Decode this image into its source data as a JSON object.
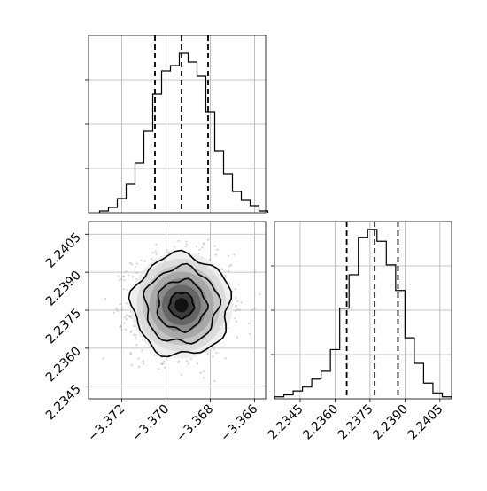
{
  "chart_data": {
    "type": "corner",
    "title": "",
    "parameters": [
      "",
      ""
    ],
    "panels": [
      {
        "name": "param0-histogram",
        "type": "histogram",
        "xlim": [
          -3.3735,
          -3.3655
        ],
        "ylim": [
          0,
          100
        ],
        "grid": true,
        "bins": [
          {
            "x0": -3.373,
            "x1": -3.3726,
            "count": 1
          },
          {
            "x0": -3.3726,
            "x1": -3.3722,
            "count": 3
          },
          {
            "x0": -3.3722,
            "x1": -3.3718,
            "count": 8
          },
          {
            "x0": -3.3718,
            "x1": -3.3714,
            "count": 16
          },
          {
            "x0": -3.3714,
            "x1": -3.371,
            "count": 28
          },
          {
            "x0": -3.371,
            "x1": -3.3706,
            "count": 46
          },
          {
            "x0": -3.3706,
            "x1": -3.3702,
            "count": 67
          },
          {
            "x0": -3.3702,
            "x1": -3.3698,
            "count": 80
          },
          {
            "x0": -3.3698,
            "x1": -3.3694,
            "count": 83
          },
          {
            "x0": -3.3694,
            "x1": -3.369,
            "count": 90
          },
          {
            "x0": -3.369,
            "x1": -3.3686,
            "count": 85
          },
          {
            "x0": -3.3686,
            "x1": -3.3682,
            "count": 77
          },
          {
            "x0": -3.3682,
            "x1": -3.3678,
            "count": 57
          },
          {
            "x0": -3.3678,
            "x1": -3.3674,
            "count": 35
          },
          {
            "x0": -3.3674,
            "x1": -3.367,
            "count": 22
          },
          {
            "x0": -3.367,
            "x1": -3.3666,
            "count": 12
          },
          {
            "x0": -3.3666,
            "x1": -3.3662,
            "count": 7
          },
          {
            "x0": -3.3662,
            "x1": -3.3658,
            "count": 4
          },
          {
            "x0": -3.3658,
            "x1": -3.3654,
            "count": 1
          }
        ],
        "quantiles": [
          -3.3705,
          -3.3693,
          -3.3681
        ]
      },
      {
        "name": "param1-histogram",
        "type": "histogram",
        "xlim": [
          2.2334,
          2.241
        ],
        "ylim": [
          0,
          90
        ],
        "grid": true,
        "x_ticks": [
          "2.2345",
          "2.2360",
          "2.2375",
          "2.2390",
          "2.2405"
        ],
        "bins": [
          {
            "x0": 2.2334,
            "x1": 2.2338,
            "count": 1
          },
          {
            "x0": 2.2338,
            "x1": 2.2342,
            "count": 2
          },
          {
            "x0": 2.2342,
            "x1": 2.2346,
            "count": 4
          },
          {
            "x0": 2.2346,
            "x1": 2.235,
            "count": 6
          },
          {
            "x0": 2.235,
            "x1": 2.2354,
            "count": 10
          },
          {
            "x0": 2.2354,
            "x1": 2.2358,
            "count": 14
          },
          {
            "x0": 2.2358,
            "x1": 2.2362,
            "count": 25
          },
          {
            "x0": 2.2362,
            "x1": 2.2366,
            "count": 46
          },
          {
            "x0": 2.2366,
            "x1": 2.237,
            "count": 63
          },
          {
            "x0": 2.237,
            "x1": 2.2374,
            "count": 82
          },
          {
            "x0": 2.2374,
            "x1": 2.2378,
            "count": 86
          },
          {
            "x0": 2.2378,
            "x1": 2.2382,
            "count": 80
          },
          {
            "x0": 2.2382,
            "x1": 2.2386,
            "count": 68
          },
          {
            "x0": 2.2386,
            "x1": 2.239,
            "count": 55
          },
          {
            "x0": 2.239,
            "x1": 2.2394,
            "count": 31
          },
          {
            "x0": 2.2394,
            "x1": 2.2398,
            "count": 18
          },
          {
            "x0": 2.2398,
            "x1": 2.2402,
            "count": 8
          },
          {
            "x0": 2.2402,
            "x1": 2.2406,
            "count": 3
          },
          {
            "x0": 2.2406,
            "x1": 2.241,
            "count": 1
          }
        ],
        "quantiles": [
          2.2365,
          2.2377,
          2.2387
        ]
      },
      {
        "name": "joint-2d-density",
        "type": "scatter+contour",
        "xlim": [
          -3.3735,
          -3.3655
        ],
        "ylim": [
          2.234,
          2.241
        ],
        "grid": true,
        "x_ticks": [
          "−3.372",
          "−3.370",
          "−3.368",
          "−3.366"
        ],
        "y_ticks": [
          "2.2345",
          "2.2360",
          "2.2375",
          "2.2390",
          "2.2405"
        ],
        "center": {
          "x": -3.3693,
          "y": 2.2377
        },
        "sigma": {
          "x": 0.0011,
          "y": 0.001
        },
        "contour_levels_sigma": [
          0.5,
          1.0,
          1.5,
          2.0
        ]
      }
    ]
  },
  "colors": {
    "line": "#000000",
    "grid": "#b0b0b0",
    "points": "#9a9a9a",
    "density_low": "#d9d9d9",
    "density_high": "#111111"
  }
}
